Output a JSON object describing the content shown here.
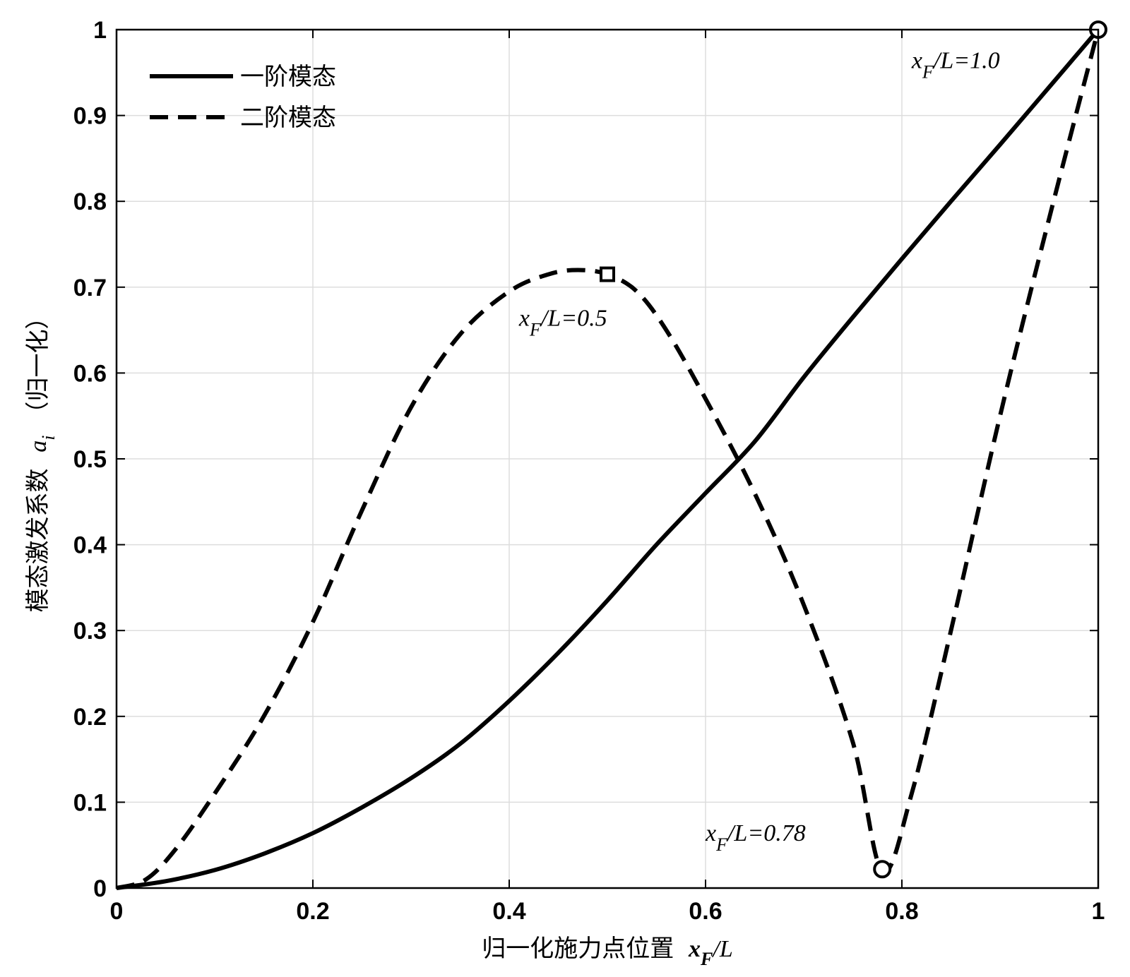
{
  "chart_data": {
    "type": "line",
    "xlim": [
      0,
      1
    ],
    "ylim": [
      0,
      1
    ],
    "grid": true,
    "legend_placement": "top-left",
    "x_ticks": [
      "0",
      "0.2",
      "0.4",
      "0.6",
      "0.8",
      "1"
    ],
    "y_ticks": [
      "0",
      "0.1",
      "0.2",
      "0.3",
      "0.4",
      "0.5",
      "0.6",
      "0.7",
      "0.8",
      "0.9",
      "1"
    ],
    "xlabel": {
      "text": "归一化施力点位置",
      "var": "x",
      "sub": "F",
      "tail": "/L"
    },
    "ylabel": {
      "text": "模态激发系数",
      "var": "a",
      "sub": "i",
      "tail": "（归一化）"
    },
    "series": [
      {
        "name": "一阶模态",
        "style": "solid",
        "x": [
          0,
          0.05,
          0.1,
          0.15,
          0.2,
          0.25,
          0.3,
          0.35,
          0.4,
          0.45,
          0.5,
          0.55,
          0.6,
          0.65,
          0.7,
          0.75,
          0.8,
          0.85,
          0.9,
          0.95,
          1.0
        ],
        "y": [
          0,
          0.008,
          0.021,
          0.04,
          0.064,
          0.094,
          0.128,
          0.168,
          0.218,
          0.274,
          0.335,
          0.4,
          0.46,
          0.52,
          0.595,
          0.665,
          0.733,
          0.8,
          0.866,
          0.933,
          1.0
        ]
      },
      {
        "name": "二阶模态",
        "style": "dashed",
        "x": [
          0,
          0.03,
          0.06,
          0.1,
          0.15,
          0.2,
          0.25,
          0.3,
          0.35,
          0.4,
          0.44,
          0.47,
          0.5,
          0.53,
          0.56,
          0.6,
          0.65,
          0.7,
          0.75,
          0.78,
          0.81,
          0.85,
          0.9,
          0.95,
          1.0
        ],
        "y": [
          0,
          0.01,
          0.045,
          0.11,
          0.2,
          0.31,
          0.44,
          0.56,
          0.645,
          0.695,
          0.715,
          0.72,
          0.715,
          0.695,
          0.65,
          0.57,
          0.46,
          0.33,
          0.17,
          0.02,
          0.11,
          0.3,
          0.55,
          0.78,
          1.0
        ]
      }
    ],
    "markers": [
      {
        "shape": "square",
        "x": 0.5,
        "y": 0.715
      },
      {
        "shape": "circle",
        "x": 0.78,
        "y": 0.022
      },
      {
        "shape": "circle",
        "x": 1.0,
        "y": 1.0
      }
    ],
    "annotations": [
      {
        "var": "x",
        "sub": "F",
        "tail": "/L=0.5",
        "x": 0.41,
        "y": 0.655
      },
      {
        "var": "x",
        "sub": "F",
        "tail": "/L=0.78",
        "x": 0.6,
        "y": 0.055
      },
      {
        "var": "x",
        "sub": "F",
        "tail": "/L=1.0",
        "x": 0.81,
        "y": 0.955
      }
    ]
  }
}
